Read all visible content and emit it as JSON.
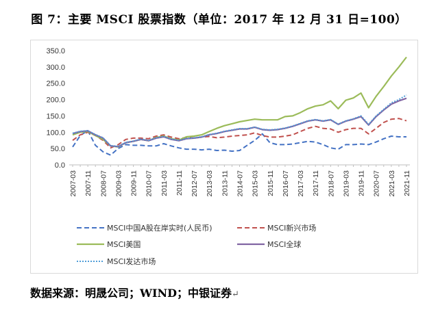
{
  "title": "图 7：主要 MSCI 股票指数（单位：2017 年 12 月 31 日=100）",
  "source": {
    "label": "数据来源：",
    "parts": [
      "明晟公司",
      "WIND",
      "中银证券"
    ],
    "sep": "；"
  },
  "chart_data": {
    "type": "line",
    "x": [
      "2007-03",
      "2007-07",
      "2007-11",
      "2008-03",
      "2008-07",
      "2008-11",
      "2009-03",
      "2009-07",
      "2009-11",
      "2010-03",
      "2010-07",
      "2010-11",
      "2011-03",
      "2011-07",
      "2011-11",
      "2012-03",
      "2012-07",
      "2012-11",
      "2013-03",
      "2013-07",
      "2013-11",
      "2014-03",
      "2014-07",
      "2014-11",
      "2015-03",
      "2015-07",
      "2015-11",
      "2016-03",
      "2016-07",
      "2016-11",
      "2017-03",
      "2017-07",
      "2017-11",
      "2018-03",
      "2018-07",
      "2018-11",
      "2019-03",
      "2019-07",
      "2019-11",
      "2020-03",
      "2020-07",
      "2020-11",
      "2021-03",
      "2021-07",
      "2021-11"
    ],
    "x_tick_labels": [
      "2007-03",
      "2007-11",
      "2008-07",
      "2009-03",
      "2009-11",
      "2010-07",
      "2011-03",
      "2011-11",
      "2012-07",
      "2013-03",
      "2013-11",
      "2014-07",
      "2015-03",
      "2015-11",
      "2016-07",
      "2017-03",
      "2017-11",
      "2018-07",
      "2019-03",
      "2019-11",
      "2020-07",
      "2021-03",
      "2021-11"
    ],
    "ylim": [
      0,
      350
    ],
    "y_ticks": [
      "0.0",
      "50.0",
      "100.0",
      "150.0",
      "200.0",
      "250.0",
      "300.0",
      "350.0"
    ],
    "grid": "off",
    "legend_position": "bottom",
    "series": [
      {
        "name": "MSCI中国A股在岸实时(人民币)",
        "color": "#4472c4",
        "dash": "dash",
        "values": [
          55,
          90,
          105,
          60,
          40,
          30,
          50,
          62,
          60,
          60,
          58,
          58,
          65,
          58,
          52,
          48,
          48,
          46,
          48,
          44,
          45,
          42,
          44,
          60,
          75,
          95,
          68,
          62,
          62,
          64,
          68,
          72,
          70,
          62,
          52,
          48,
          62,
          62,
          64,
          62,
          70,
          80,
          88,
          86,
          86
        ]
      },
      {
        "name": "MSCI新兴市场",
        "color": "#c0504d",
        "dash": "dash",
        "values": [
          75,
          92,
          100,
          90,
          75,
          52,
          62,
          78,
          82,
          82,
          80,
          88,
          92,
          85,
          80,
          84,
          82,
          85,
          87,
          83,
          85,
          88,
          90,
          92,
          98,
          90,
          85,
          85,
          88,
          92,
          102,
          112,
          118,
          112,
          110,
          100,
          108,
          112,
          112,
          95,
          112,
          130,
          140,
          142,
          135
        ]
      },
      {
        "name": "MSCI美国",
        "color": "#9bbb59",
        "dash": "solid",
        "values": [
          92,
          100,
          102,
          90,
          78,
          58,
          55,
          68,
          72,
          78,
          74,
          84,
          88,
          80,
          76,
          86,
          88,
          92,
          102,
          112,
          120,
          126,
          132,
          136,
          140,
          138,
          138,
          138,
          148,
          150,
          160,
          172,
          180,
          184,
          196,
          172,
          198,
          205,
          220,
          175,
          210,
          240,
          272,
          300,
          330
        ]
      },
      {
        "name": "MSCI全球",
        "color": "#8064a2",
        "dash": "solid",
        "values": [
          96,
          102,
          104,
          92,
          82,
          58,
          56,
          68,
          72,
          78,
          74,
          82,
          86,
          78,
          74,
          80,
          82,
          85,
          92,
          96,
          102,
          106,
          110,
          110,
          115,
          108,
          106,
          108,
          112,
          118,
          126,
          134,
          138,
          134,
          138,
          124,
          134,
          140,
          148,
          122,
          148,
          168,
          186,
          196,
          204
        ]
      },
      {
        "name": "MSCI发达市场",
        "color": "#4f9dd8",
        "dash": "dot",
        "values": [
          97,
          103,
          105,
          93,
          83,
          59,
          57,
          69,
          73,
          79,
          75,
          83,
          87,
          79,
          75,
          81,
          83,
          86,
          93,
          97,
          103,
          107,
          111,
          111,
          116,
          109,
          107,
          109,
          113,
          119,
          127,
          135,
          139,
          135,
          139,
          125,
          135,
          141,
          150,
          124,
          150,
          170,
          190,
          200,
          214
        ]
      }
    ]
  }
}
